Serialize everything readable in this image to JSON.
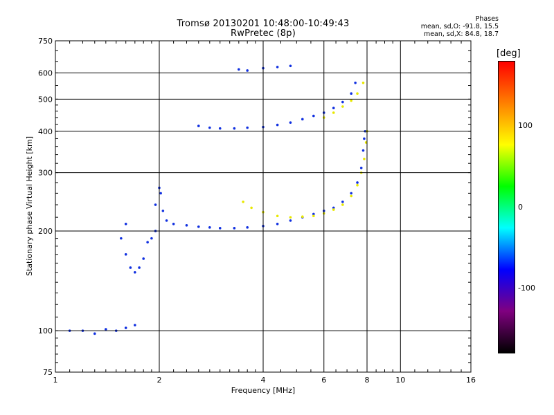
{
  "header": {
    "title_line1": "Tromsø 20130201 10:48:00-10:49:43",
    "title_line2": "RwPretec (8p)"
  },
  "stats": {
    "heading": "Phases",
    "line_o": "mean, sd,O: -91.8, 15.5",
    "line_x": "mean, sd,X: 84.8, 18.7"
  },
  "colorbar": {
    "unit_label": "[deg]",
    "ticks": [
      {
        "label": "100",
        "value": 100
      },
      {
        "label": "0",
        "value": 0
      },
      {
        "label": "-100",
        "value": -100
      }
    ],
    "range": [
      -180,
      180
    ],
    "colors": [
      "#000000",
      "#800080",
      "#0000ff",
      "#00ffff",
      "#00ff00",
      "#ffff00",
      "#ff8000",
      "#ff0000"
    ]
  },
  "chart_data": {
    "type": "scatter",
    "xlabel": "Frequency [MHz]",
    "ylabel": "Stationary phase Virtual Height [km]",
    "x_scale": "log",
    "y_scale": "log",
    "xlim": [
      1,
      16
    ],
    "ylim": [
      75,
      750
    ],
    "x_ticks": [
      {
        "label": "1",
        "value": 1
      },
      {
        "label": "2",
        "value": 2
      },
      {
        "label": "4",
        "value": 4
      },
      {
        "label": "6",
        "value": 6
      },
      {
        "label": "8",
        "value": 8
      },
      {
        "label": "10",
        "value": 10
      },
      {
        "label": "16",
        "value": 16
      }
    ],
    "y_ticks": [
      {
        "label": "750",
        "value": 750
      },
      {
        "label": "600",
        "value": 600
      },
      {
        "label": "500",
        "value": 500
      },
      {
        "label": "400",
        "value": 400
      },
      {
        "label": "300",
        "value": 300
      },
      {
        "label": "200",
        "value": 200
      },
      {
        "label": "100",
        "value": 100
      },
      {
        "label": "75",
        "value": 75
      }
    ],
    "grid_x": [
      2,
      4,
      6,
      8,
      10
    ],
    "grid_y": [
      100,
      200,
      300,
      400,
      500,
      600
    ],
    "series": [
      {
        "color_phase": -100,
        "points": [
          [
            1.1,
            100
          ],
          [
            1.2,
            100
          ],
          [
            1.3,
            98
          ],
          [
            1.4,
            101
          ],
          [
            1.5,
            100
          ],
          [
            1.6,
            102
          ],
          [
            1.7,
            104
          ],
          [
            1.6,
            210
          ],
          [
            1.55,
            190
          ],
          [
            1.6,
            170
          ],
          [
            1.65,
            155
          ],
          [
            1.7,
            150
          ],
          [
            1.75,
            155
          ],
          [
            1.8,
            165
          ],
          [
            1.85,
            185
          ],
          [
            1.9,
            190
          ],
          [
            1.95,
            200
          ],
          [
            1.95,
            240
          ],
          [
            2.0,
            270
          ],
          [
            2.02,
            260
          ],
          [
            2.05,
            230
          ],
          [
            2.1,
            215
          ],
          [
            2.2,
            210
          ],
          [
            2.4,
            208
          ],
          [
            2.6,
            206
          ],
          [
            2.8,
            205
          ],
          [
            3.0,
            204
          ],
          [
            3.3,
            204
          ],
          [
            3.6,
            205
          ],
          [
            4.0,
            207
          ],
          [
            4.4,
            210
          ],
          [
            4.8,
            215
          ],
          [
            5.2,
            220
          ],
          [
            5.6,
            225
          ],
          [
            6.0,
            230
          ],
          [
            6.4,
            235
          ],
          [
            6.8,
            245
          ],
          [
            7.2,
            260
          ],
          [
            7.5,
            280
          ],
          [
            7.7,
            310
          ],
          [
            7.8,
            350
          ],
          [
            7.85,
            380
          ],
          [
            7.9,
            400
          ],
          [
            2.6,
            415
          ],
          [
            2.8,
            410
          ],
          [
            3.0,
            408
          ],
          [
            3.3,
            408
          ],
          [
            3.6,
            410
          ],
          [
            4.0,
            412
          ],
          [
            4.4,
            418
          ],
          [
            4.8,
            425
          ],
          [
            5.2,
            435
          ],
          [
            5.6,
            445
          ],
          [
            6.0,
            455
          ],
          [
            6.4,
            470
          ],
          [
            6.8,
            490
          ],
          [
            7.2,
            520
          ],
          [
            7.4,
            560
          ],
          [
            3.4,
            615
          ],
          [
            3.6,
            610
          ],
          [
            4.0,
            620
          ],
          [
            4.4,
            625
          ],
          [
            4.8,
            630
          ]
        ]
      },
      {
        "color_phase": 100,
        "points": [
          [
            3.5,
            245
          ],
          [
            3.7,
            235
          ],
          [
            4.0,
            228
          ],
          [
            4.4,
            222
          ],
          [
            4.8,
            220
          ],
          [
            5.2,
            221
          ],
          [
            5.6,
            222
          ],
          [
            6.0,
            226
          ],
          [
            6.4,
            232
          ],
          [
            6.8,
            240
          ],
          [
            7.2,
            255
          ],
          [
            7.5,
            275
          ],
          [
            7.7,
            300
          ],
          [
            7.85,
            330
          ],
          [
            7.95,
            370
          ],
          [
            8.0,
            400
          ],
          [
            6.0,
            440
          ],
          [
            6.4,
            455
          ],
          [
            6.8,
            475
          ],
          [
            7.2,
            495
          ],
          [
            7.5,
            520
          ],
          [
            7.8,
            560
          ]
        ]
      }
    ]
  }
}
